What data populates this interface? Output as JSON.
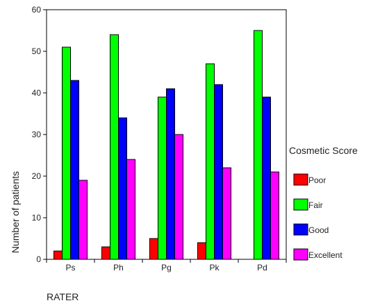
{
  "chart_data": {
    "type": "bar",
    "title": "",
    "xlabel": "RATER",
    "ylabel": "Number of patients",
    "categories": [
      "Ps",
      "Ph",
      "Pg",
      "Pk",
      "Pd"
    ],
    "series": [
      {
        "name": "Poor",
        "color": "#ff0000",
        "values": [
          2,
          3,
          5,
          4,
          0
        ]
      },
      {
        "name": "Fair",
        "color": "#00ff00",
        "values": [
          51,
          54,
          39,
          47,
          55
        ]
      },
      {
        "name": "Good",
        "color": "#0000ff",
        "values": [
          43,
          34,
          41,
          42,
          39
        ]
      },
      {
        "name": "Excellent",
        "color": "#ff00ff",
        "values": [
          19,
          24,
          30,
          22,
          21
        ]
      }
    ],
    "ylim": [
      0,
      60
    ],
    "yticks": [
      0,
      10,
      20,
      30,
      40,
      50,
      60
    ],
    "grid": false,
    "legend": {
      "title": "Cosmetic Score",
      "placement": "right"
    }
  }
}
